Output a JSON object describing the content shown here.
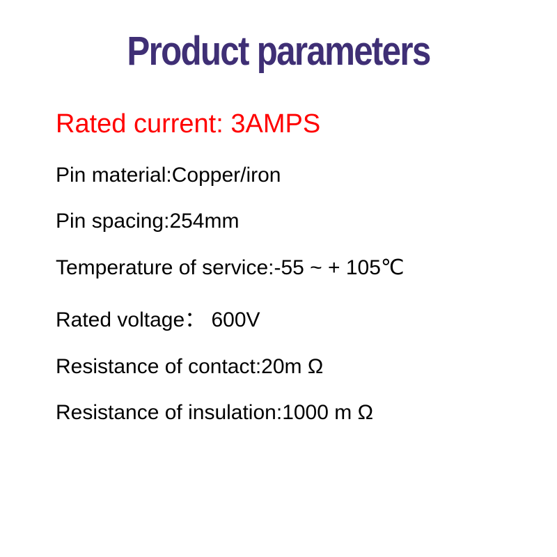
{
  "title": "Product parameters",
  "highlight": {
    "label": "Rated current: ",
    "value": "3AMPS"
  },
  "rows": [
    {
      "label": "Pin material:",
      "value": "Copper/iron"
    },
    {
      "label": "Pin spacing:",
      "value": "254mm"
    },
    {
      "label": "Temperature of service:",
      "value": "-55 ~ + 105℃"
    },
    {
      "label": "Rated voltage：",
      "value": " 600V"
    },
    {
      "label": "Resistance of contact:",
      "value": "20m Ω"
    },
    {
      "label": "Resistance of insulation:",
      "value": "1000 m Ω"
    }
  ],
  "colors": {
    "title": "#3f2f75",
    "highlight": "#ff0000",
    "text": "#000000",
    "background": "#ffffff"
  },
  "typography": {
    "title_fontsize": 58,
    "highlight_fontsize": 38,
    "row_fontsize": 30,
    "title_fontweight": 900
  }
}
